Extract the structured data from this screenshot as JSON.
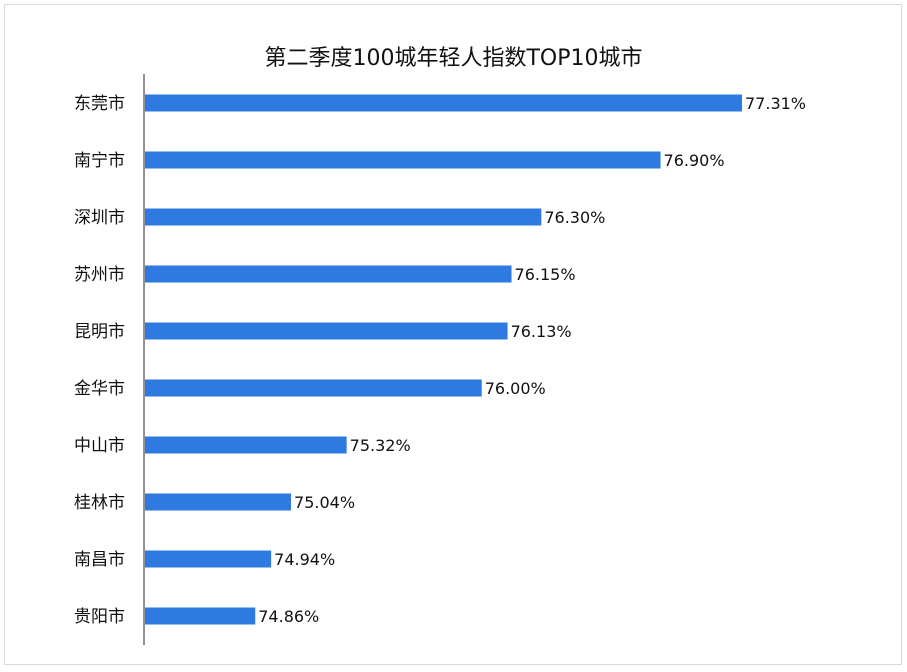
{
  "chart_data": {
    "type": "bar",
    "orientation": "horizontal",
    "title": "第二季度100城年轻人指数TOP10城市",
    "categories": [
      "东莞市",
      "南宁市",
      "深圳市",
      "苏州市",
      "昆明市",
      "金华市",
      "中山市",
      "桂林市",
      "南昌市",
      "贵阳市"
    ],
    "values": [
      77.31,
      76.9,
      76.3,
      76.15,
      76.13,
      76.0,
      75.32,
      75.04,
      74.94,
      74.86
    ],
    "value_labels": [
      "77.31%",
      "76.90%",
      "76.30%",
      "76.15%",
      "76.13%",
      "76.00%",
      "75.32%",
      "75.04%",
      "74.94%",
      "74.86%"
    ],
    "xlabel": "",
    "ylabel": "",
    "xlim": [
      74.3,
      77.31
    ],
    "grid": false,
    "bar_color": "#2f7ae0"
  }
}
